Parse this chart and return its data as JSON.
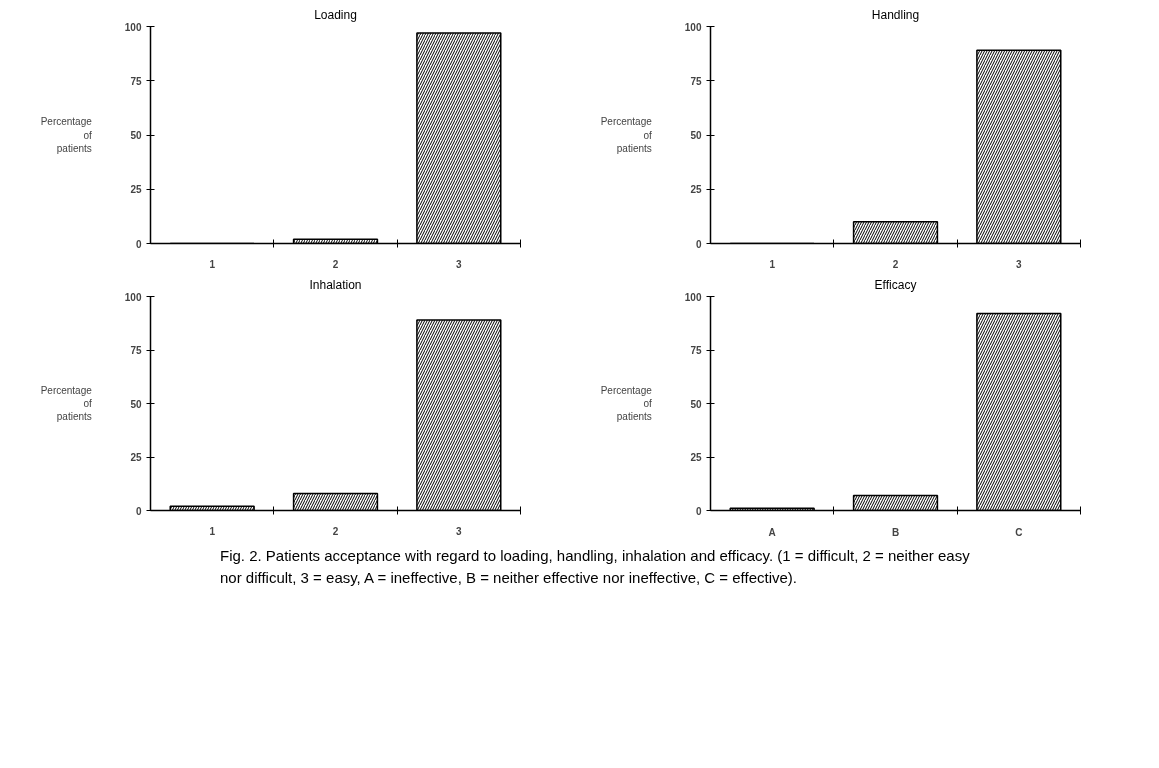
{
  "chart_data": [
    {
      "type": "bar",
      "title": "Loading",
      "ylabel": "Percentage\nof\npatients",
      "categories": [
        "1",
        "2",
        "3"
      ],
      "values": [
        0,
        2,
        97
      ],
      "color": "#000000",
      "ylim": [
        0,
        100
      ],
      "yticks": [
        0,
        25,
        50,
        75,
        100
      ],
      "grid": false
    },
    {
      "type": "bar",
      "title": "Handling",
      "ylabel": "Percentage\nof\npatients",
      "categories": [
        "1",
        "2",
        "3"
      ],
      "values": [
        0,
        10,
        89
      ],
      "color": "#000000",
      "ylim": [
        0,
        100
      ],
      "yticks": [
        0,
        25,
        50,
        75,
        100
      ],
      "grid": false
    },
    {
      "type": "bar",
      "title": "Inhalation",
      "ylabel": "Percentage\nof\npatients",
      "categories": [
        "1",
        "2",
        "3"
      ],
      "values": [
        2,
        8,
        89
      ],
      "color": "#000000",
      "ylim": [
        0,
        100
      ],
      "yticks": [
        0,
        25,
        50,
        75,
        100
      ],
      "grid": false
    },
    {
      "type": "bar",
      "title": "Efficacy",
      "ylabel": "Percentage\nof\npatients",
      "categories": [
        "A",
        "B",
        "C"
      ],
      "values": [
        1,
        7,
        92
      ],
      "color": "#000000",
      "ylim": [
        0,
        100
      ],
      "yticks": [
        0,
        25,
        50,
        75,
        100
      ],
      "grid": false,
      "annotations": [
        "Fig. 2.  Patients acceptance with regard to loading, handling, inhalation and efficacy. (1 = difficult, 2 = neither easy nor difficult, 3 = easy, A = ineffective, B = neither effective nor ineffective, C = effective)."
      ]
    }
  ]
}
